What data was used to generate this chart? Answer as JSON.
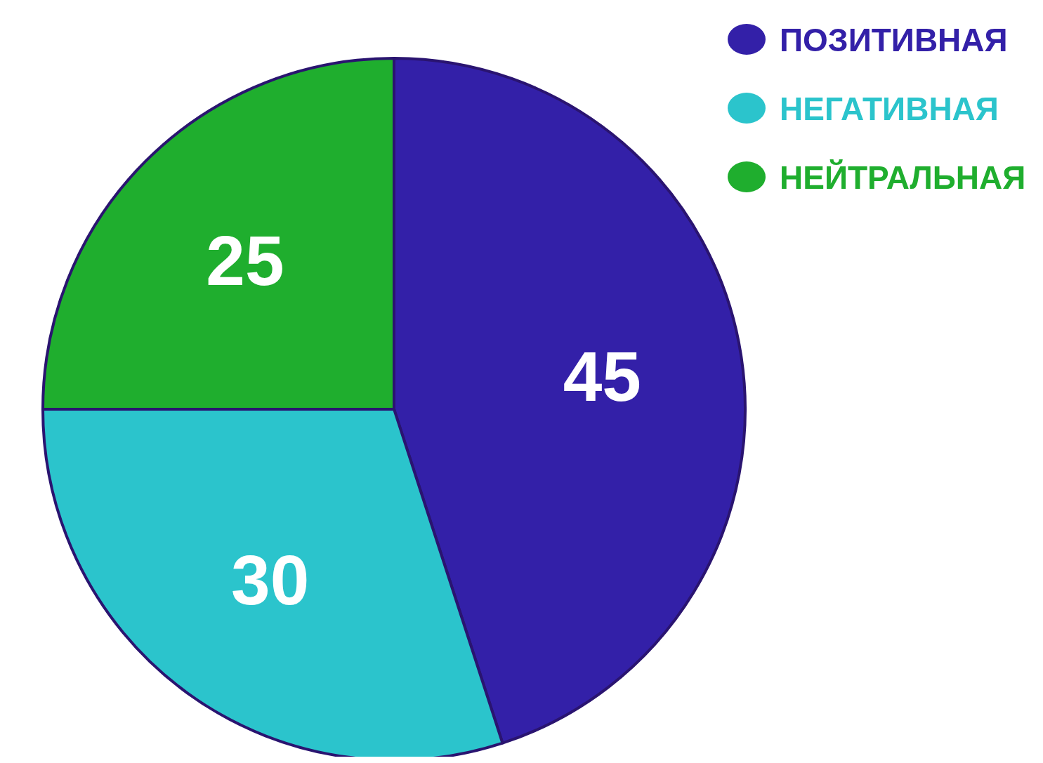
{
  "chart_data": {
    "type": "pie",
    "categories": [
      "ПОЗИТИВНАЯ",
      "НЕГАТИВНАЯ",
      "НЕЙТРАЛЬНАЯ"
    ],
    "values": [
      45,
      30,
      25
    ],
    "colors": [
      "#3320a8",
      "#2bc4cc",
      "#1fae2e"
    ],
    "data_labels": true,
    "legend": "top right"
  }
}
